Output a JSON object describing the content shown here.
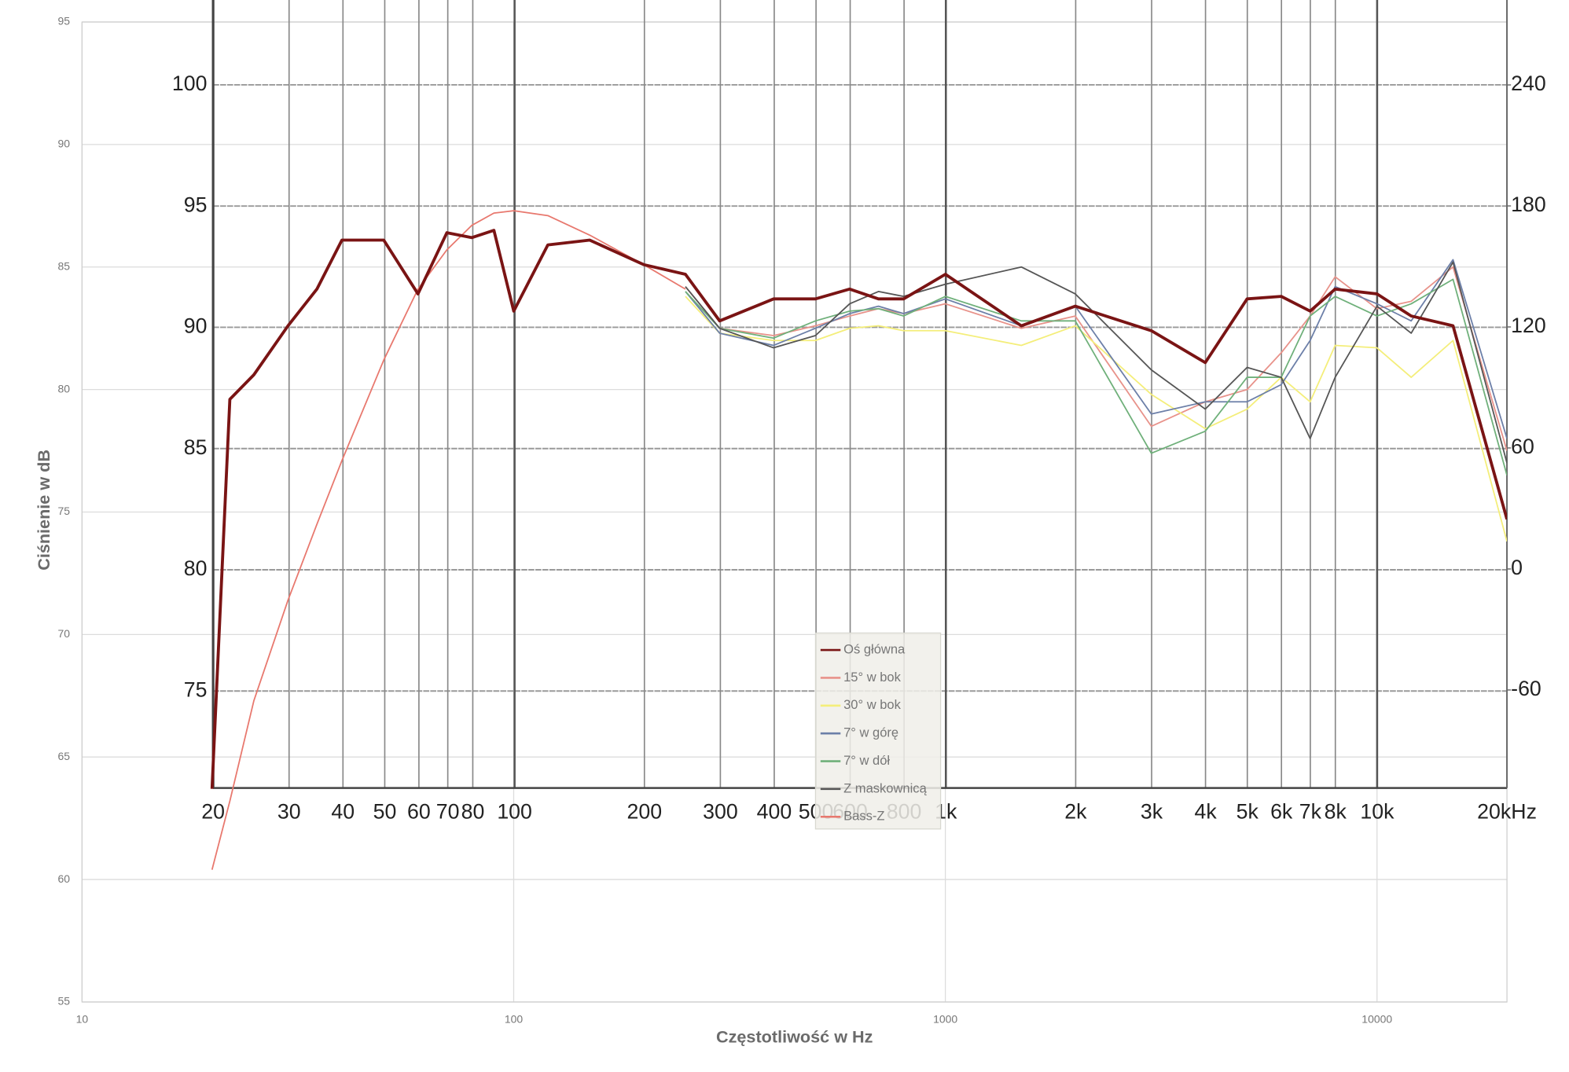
{
  "chart_data": [
    {
      "type": "line",
      "xlabel": "Częstotliwość w Hz",
      "ylabel": "Ciśnienie w dB",
      "log_x": true,
      "xlim": [
        10,
        20000
      ],
      "xticks": [
        10,
        100,
        1000,
        10000
      ],
      "ylim": [
        55,
        95
      ],
      "yticks": [
        55,
        60,
        65,
        70,
        75,
        80,
        85,
        90,
        95
      ],
      "grid": true,
      "legend": "center",
      "x": [
        20,
        22,
        25,
        30,
        35,
        40,
        50,
        60,
        70,
        80,
        90,
        100,
        120,
        150,
        200,
        250,
        300,
        400,
        500,
        600,
        700,
        800,
        1000,
        1500,
        2000,
        3000,
        4000,
        5000,
        6000,
        7000,
        8000,
        10000,
        12000,
        15000,
        20000
      ],
      "series": [
        {
          "name": "Oś główna",
          "color": "#7a1414",
          "values": [
            63.7,
            79.6,
            80.6,
            82.6,
            84.1,
            86.1,
            86.1,
            83.9,
            86.4,
            86.2,
            86.5,
            83.2,
            85.9,
            86.1,
            85.1,
            84.7,
            82.8,
            83.7,
            83.7,
            84.1,
            83.7,
            83.7,
            84.7,
            82.6,
            83.4,
            82.4,
            81.1,
            83.7,
            83.8,
            83.2,
            84.1,
            83.9,
            83.0,
            82.6,
            74.7
          ]
        },
        {
          "name": "15° w bok",
          "color": "#e8928a",
          "values": [
            null,
            null,
            null,
            null,
            null,
            null,
            null,
            null,
            null,
            null,
            null,
            null,
            null,
            null,
            null,
            84.2,
            82.5,
            82.2,
            82.6,
            83.0,
            83.3,
            83.1,
            83.5,
            82.5,
            83.0,
            78.5,
            79.5,
            80.0,
            81.5,
            83.0,
            84.6,
            83.3,
            83.6,
            85.0,
            77.5
          ]
        },
        {
          "name": "30° w bok",
          "color": "#f4ee7a",
          "values": [
            null,
            null,
            null,
            null,
            null,
            null,
            null,
            null,
            null,
            null,
            null,
            null,
            null,
            null,
            null,
            83.8,
            82.3,
            82.0,
            82.0,
            82.5,
            82.6,
            82.4,
            82.4,
            81.8,
            82.6,
            79.8,
            78.4,
            79.2,
            80.5,
            79.5,
            81.8,
            81.7,
            80.5,
            82.0,
            73.8
          ]
        },
        {
          "name": "7° w górę",
          "color": "#6c7fa8",
          "values": [
            null,
            null,
            null,
            null,
            null,
            null,
            null,
            null,
            null,
            null,
            null,
            null,
            null,
            null,
            null,
            84.0,
            82.3,
            81.8,
            82.5,
            83.1,
            83.4,
            83.1,
            83.7,
            82.6,
            83.4,
            79.0,
            79.5,
            79.5,
            80.2,
            82.0,
            84.2,
            83.5,
            82.8,
            85.3,
            78.0
          ]
        },
        {
          "name": "7° w dół",
          "color": "#6fb07a",
          "values": [
            null,
            null,
            null,
            null,
            null,
            null,
            null,
            null,
            null,
            null,
            null,
            null,
            null,
            null,
            null,
            84.0,
            82.5,
            82.1,
            82.8,
            83.2,
            83.3,
            83.0,
            83.8,
            82.8,
            82.8,
            77.4,
            78.3,
            80.5,
            80.5,
            83.0,
            83.8,
            83.0,
            83.5,
            84.5,
            76.5
          ]
        },
        {
          "name": "Z maskownicą",
          "color": "#555555",
          "values": [
            null,
            null,
            null,
            null,
            null,
            null,
            null,
            null,
            null,
            null,
            null,
            null,
            null,
            null,
            null,
            84.2,
            82.5,
            81.7,
            82.2,
            83.5,
            84.0,
            83.8,
            84.3,
            85.0,
            83.9,
            80.8,
            79.2,
            80.9,
            80.5,
            78.0,
            80.5,
            83.4,
            82.3,
            85.2,
            77.0
          ]
        },
        {
          "name": "Bass-Z",
          "color": "#e8786e",
          "values": [
            60.4,
            63.2,
            67.3,
            71.4,
            74.5,
            77.1,
            81.2,
            84.1,
            85.7,
            86.7,
            87.2,
            87.3,
            87.1,
            86.3,
            85.1,
            84.1,
            null,
            null,
            null,
            null,
            null,
            null,
            null,
            null,
            null,
            null,
            null,
            null,
            null,
            null,
            null,
            null,
            null,
            null,
            null
          ]
        }
      ]
    },
    {
      "type": "axes",
      "log_x": true,
      "xlim": [
        20,
        20000
      ],
      "xticks": [
        20,
        30,
        40,
        50,
        60,
        70,
        80,
        100,
        200,
        300,
        400,
        500,
        600,
        800,
        {
          "value": 1000,
          "label": "1k"
        },
        {
          "value": 2000,
          "label": "2k"
        },
        {
          "value": 3000,
          "label": "3k"
        },
        {
          "value": 4000,
          "label": "4k"
        },
        {
          "value": 5000,
          "label": "5k"
        },
        {
          "value": 6000,
          "label": "6k"
        },
        {
          "value": 7000,
          "label": "7k"
        },
        {
          "value": 8000,
          "label": "8k"
        },
        {
          "value": 10000,
          "label": "10k"
        },
        {
          "value": 20000,
          "label": "20kHz"
        }
      ],
      "ylim": [
        71,
        103.5
      ],
      "yticks": [
        75,
        80,
        85,
        90,
        95,
        100
      ],
      "y2lim": [
        -108.6,
        282.1
      ],
      "y2ticks": [
        -60,
        0,
        60,
        120,
        180,
        240
      ],
      "grid": true
    }
  ]
}
